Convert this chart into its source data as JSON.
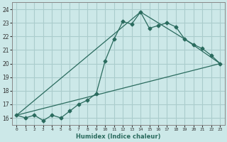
{
  "xlabel": "Humidex (Indice chaleur)",
  "background_color": "#cce8e8",
  "grid_color": "#aacccc",
  "line_color": "#2a6b5e",
  "xlim": [
    -0.5,
    23.5
  ],
  "ylim": [
    15.5,
    24.5
  ],
  "xticks": [
    0,
    1,
    2,
    3,
    4,
    5,
    6,
    7,
    8,
    9,
    10,
    11,
    12,
    13,
    14,
    15,
    16,
    17,
    18,
    19,
    20,
    21,
    22,
    23
  ],
  "yticks": [
    16,
    17,
    18,
    19,
    20,
    21,
    22,
    23,
    24
  ],
  "line1_x": [
    0,
    1,
    2,
    3,
    4,
    5,
    6,
    7,
    8,
    9,
    10,
    11,
    12,
    13,
    14,
    15,
    16,
    17,
    18,
    19,
    20,
    21,
    22,
    23
  ],
  "line1_y": [
    16.2,
    16.0,
    16.2,
    15.8,
    16.2,
    16.0,
    16.5,
    17.0,
    17.3,
    17.8,
    20.2,
    21.8,
    23.1,
    22.9,
    23.8,
    22.6,
    22.8,
    23.0,
    22.7,
    21.8,
    21.4,
    21.1,
    20.6,
    20.0
  ],
  "line2_x": [
    0,
    14,
    19,
    23
  ],
  "line2_y": [
    16.2,
    23.8,
    21.8,
    20.0
  ],
  "line3_x": [
    0,
    23
  ],
  "line3_y": [
    16.2,
    20.0
  ]
}
